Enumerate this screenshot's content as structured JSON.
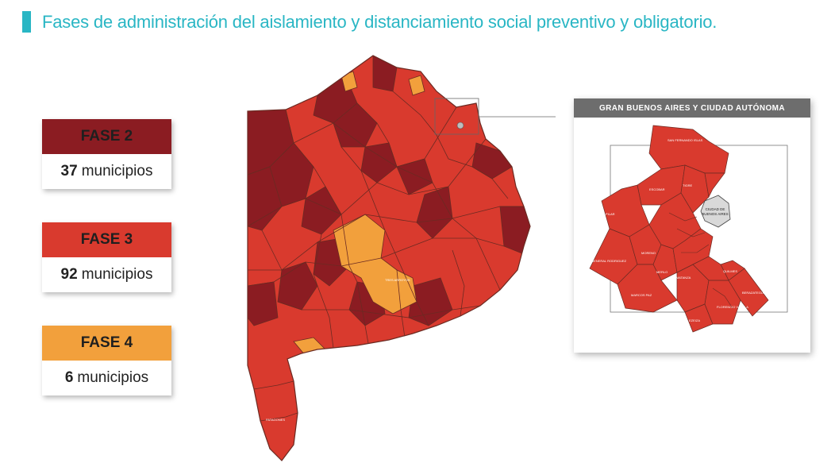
{
  "title": "Fases de administración del aislamiento y distanciamiento social preventivo y obligatorio.",
  "colors": {
    "accent": "#29b6c4",
    "fase2": "#8b1c22",
    "fase3": "#d93a2e",
    "fase4": "#f2a03c",
    "inset_header": "#6d6d6d",
    "border": "#6b2a22"
  },
  "legend": [
    {
      "label": "FASE 2",
      "count": "37",
      "unit": "municipios"
    },
    {
      "label": "FASE 3",
      "count": "92",
      "unit": "municipios"
    },
    {
      "label": "FASE 4",
      "count": "6",
      "unit": "municipios"
    }
  ],
  "inset": {
    "title": "GRAN BUENOS AIRES Y CIUDAD AUTÓNOMA",
    "caba_label": [
      "CIUDAD DE",
      "BUENOS AIRES"
    ],
    "labels": [
      "SAN FERNANDO ISLAS",
      "ESCOBAR",
      "TIGRE",
      "PILAR",
      "GENERAL RODRIGUEZ",
      "MORENO",
      "MERLO",
      "LA MATANZA",
      "MARCOS PAZ",
      "EZEIZA",
      "QUILMES",
      "BERAZATEGUI",
      "FLORENCIO VARELA"
    ]
  },
  "map_labels": [
    "TRES ARROYOS",
    "PATAGONES"
  ]
}
